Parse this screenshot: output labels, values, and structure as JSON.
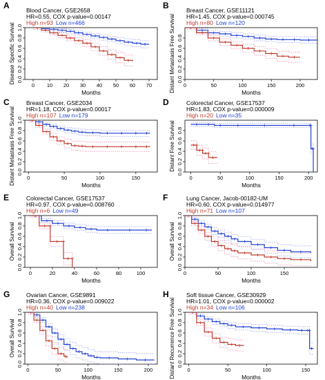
{
  "colors": {
    "high": "#c0392b",
    "low": "#1f3fd1",
    "high_ci": "#e77fa6",
    "low_ci": "#8c98e8"
  },
  "chart_data": [
    {
      "letter": "A",
      "type": "line",
      "title": "Blood Cancer, GSE2658",
      "stats": "HR=0.55, COX p-value=0.00147",
      "high_label": "High n=93",
      "low_label": "Low n=466",
      "xlabel": "Months",
      "ylabel": "Disease Specific Survival",
      "xlim": [
        -5,
        75
      ],
      "ylim": [
        0,
        1
      ],
      "xticks": [
        0,
        10,
        20,
        30,
        40,
        50,
        60,
        70
      ],
      "yticks": [
        0.0,
        0.2,
        0.4,
        0.6,
        0.8,
        1.0
      ],
      "series": [
        {
          "group": "low",
          "x": [
            0,
            5,
            10,
            15,
            20,
            25,
            30,
            35,
            40,
            45,
            50,
            55,
            60,
            65,
            70
          ],
          "y": [
            1.0,
            0.98,
            0.97,
            0.95,
            0.93,
            0.9,
            0.87,
            0.84,
            0.81,
            0.78,
            0.75,
            0.72,
            0.7,
            0.68,
            0.68
          ]
        },
        {
          "group": "high",
          "x": [
            0,
            5,
            10,
            15,
            20,
            25,
            30,
            35,
            40,
            45,
            50,
            55,
            60
          ],
          "y": [
            1.0,
            0.95,
            0.9,
            0.85,
            0.8,
            0.75,
            0.7,
            0.63,
            0.55,
            0.48,
            0.42,
            0.37,
            0.35
          ]
        }
      ]
    },
    {
      "letter": "B",
      "type": "line",
      "title": "Breast Cancer, GSE11121",
      "stats": "HR=1.45, COX p-value=0.000745",
      "high_label": "High n=80",
      "low_label": "Low n=120",
      "xlabel": "Months",
      "ylabel": "Distant Metastasis Free Survival",
      "xlim": [
        0,
        230
      ],
      "ylim": [
        0,
        1
      ],
      "xticks": [
        0,
        50,
        100,
        150,
        200
      ],
      "yticks": [
        0.0,
        0.2,
        0.4,
        0.6,
        0.8
      ],
      "series": [
        {
          "group": "low",
          "x": [
            0,
            20,
            40,
            60,
            80,
            100,
            120,
            140,
            160,
            180,
            200,
            230
          ],
          "y": [
            1.0,
            0.95,
            0.9,
            0.88,
            0.85,
            0.83,
            0.8,
            0.78,
            0.77,
            0.77,
            0.76,
            0.76
          ]
        },
        {
          "group": "high",
          "x": [
            0,
            20,
            40,
            60,
            80,
            100,
            120,
            140,
            160,
            180,
            200
          ],
          "y": [
            1.0,
            0.9,
            0.8,
            0.72,
            0.66,
            0.6,
            0.55,
            0.5,
            0.45,
            0.43,
            0.43
          ]
        }
      ]
    },
    {
      "letter": "C",
      "type": "line",
      "title": "Breast Cancer, GSE2034",
      "stats": "HR=1.18, COX p-value=0.00017",
      "high_label": "High n=107",
      "low_label": "Low n=179",
      "xlabel": "Months",
      "ylabel": "Distant Metastasis Free Survival",
      "xlim": [
        -5,
        180
      ],
      "ylim": [
        0,
        1
      ],
      "xticks": [
        0,
        50,
        100,
        150
      ],
      "yticks": [
        0.0,
        0.2,
        0.4,
        0.6,
        0.8,
        1.0
      ],
      "series": [
        {
          "group": "low",
          "x": [
            0,
            10,
            20,
            30,
            40,
            50,
            60,
            70,
            80,
            100,
            120,
            140,
            160,
            170
          ],
          "y": [
            1.0,
            0.97,
            0.92,
            0.88,
            0.84,
            0.81,
            0.79,
            0.77,
            0.76,
            0.75,
            0.75,
            0.75,
            0.75,
            0.75
          ]
        },
        {
          "group": "high",
          "x": [
            0,
            10,
            20,
            30,
            40,
            50,
            60,
            70,
            80,
            100,
            120,
            140,
            160,
            170
          ],
          "y": [
            1.0,
            0.9,
            0.78,
            0.68,
            0.6,
            0.55,
            0.51,
            0.5,
            0.49,
            0.49,
            0.49,
            0.49,
            0.49,
            0.49
          ]
        }
      ]
    },
    {
      "letter": "D",
      "type": "line",
      "title": "Colorectal Cancer, GSE17537",
      "stats": "HR=1.83, COX p-value=0.000009",
      "high_label": "High n=20",
      "low_label": "Low n=35",
      "xlabel": "Months",
      "ylabel": "Distant Free Survival",
      "xlim": [
        -10,
        215
      ],
      "ylim": [
        0,
        1
      ],
      "xticks": [
        0,
        50,
        100,
        150,
        200
      ],
      "yticks": [
        0.0,
        0.2,
        0.4,
        0.6,
        0.8
      ],
      "series": [
        {
          "group": "low",
          "x": [
            0,
            20,
            40,
            60,
            100,
            150,
            200,
            204,
            204,
            208,
            208
          ],
          "y": [
            0.92,
            0.92,
            0.9,
            0.9,
            0.9,
            0.9,
            0.9,
            0.9,
            0.45,
            0.45,
            0.0
          ]
        },
        {
          "group": "high",
          "x": [
            0,
            10,
            10,
            20,
            20,
            30,
            30,
            45
          ],
          "y": [
            0.52,
            0.52,
            0.42,
            0.42,
            0.36,
            0.36,
            0.28,
            0.28
          ]
        }
      ]
    },
    {
      "letter": "E",
      "type": "line",
      "title": "Colorectal Cancer, GSE17537",
      "stats": "HR=0.97, COX p-value=0.008760",
      "high_label": "High n=6",
      "low_label": "Low n=49",
      "xlabel": "Months",
      "ylabel": "Overall Survival",
      "xlim": [
        -5,
        115
      ],
      "ylim": [
        0,
        1
      ],
      "xticks": [
        0,
        20,
        40,
        60,
        80,
        100
      ],
      "yticks": [
        0.0,
        0.2,
        0.4,
        0.6,
        0.8,
        1.0
      ],
      "series": [
        {
          "group": "low",
          "x": [
            0,
            10,
            20,
            30,
            40,
            50,
            60,
            80,
            100,
            110
          ],
          "y": [
            1.0,
            0.9,
            0.85,
            0.8,
            0.77,
            0.74,
            0.72,
            0.72,
            0.72,
            0.72
          ]
        },
        {
          "group": "high",
          "x": [
            0,
            8,
            8,
            18,
            18,
            30,
            30,
            38,
            38
          ],
          "y": [
            1.0,
            1.0,
            0.8,
            0.8,
            0.5,
            0.5,
            0.17,
            0.17,
            0.0
          ]
        }
      ]
    },
    {
      "letter": "F",
      "type": "line",
      "title": "Lung Cancer, Jacob-00182-UM",
      "stats": "HR=0.60, COX p-value=0.014977",
      "high_label": "High n=71",
      "low_label": "Low n=107",
      "xlabel": "Months",
      "ylabel": "Overall Survival",
      "xlim": [
        0,
        200
      ],
      "ylim": [
        0,
        1
      ],
      "xticks": [
        0,
        50,
        100,
        150
      ],
      "yticks": [
        0.0,
        0.2,
        0.4,
        0.6,
        0.8,
        1.0
      ],
      "series": [
        {
          "group": "low",
          "x": [
            0,
            10,
            20,
            30,
            40,
            50,
            60,
            70,
            80,
            100,
            120,
            140,
            160,
            190
          ],
          "y": [
            1.0,
            0.93,
            0.85,
            0.78,
            0.7,
            0.65,
            0.6,
            0.55,
            0.5,
            0.44,
            0.38,
            0.33,
            0.3,
            0.28
          ]
        },
        {
          "group": "high",
          "x": [
            0,
            10,
            20,
            30,
            40,
            50,
            60,
            70,
            80,
            100,
            120,
            140,
            160,
            190
          ],
          "y": [
            1.0,
            0.85,
            0.72,
            0.6,
            0.5,
            0.42,
            0.36,
            0.32,
            0.28,
            0.24,
            0.2,
            0.17,
            0.15,
            0.12
          ]
        }
      ]
    },
    {
      "letter": "G",
      "type": "line",
      "title": "Ovarian Cancer, GSE9891",
      "stats": "HR=0.36, COX p-value=0.009022",
      "high_label": "High n=40",
      "low_label": "Low n=238",
      "xlabel": "Months",
      "ylabel": "Overall Survival",
      "xlim": [
        -5,
        215
      ],
      "ylim": [
        0,
        1
      ],
      "xticks": [
        0,
        50,
        100,
        150,
        200
      ],
      "yticks": [
        0.0,
        0.2,
        0.4,
        0.6,
        0.8,
        1.0
      ],
      "series": [
        {
          "group": "low",
          "x": [
            0,
            10,
            20,
            30,
            40,
            50,
            60,
            70,
            80,
            90,
            100,
            110,
            120,
            150,
            180,
            210
          ],
          "y": [
            1.0,
            0.95,
            0.85,
            0.72,
            0.6,
            0.48,
            0.38,
            0.3,
            0.24,
            0.2,
            0.16,
            0.13,
            0.12,
            0.1,
            0.08,
            0.08
          ]
        },
        {
          "group": "high",
          "x": [
            0,
            10,
            20,
            30,
            40,
            50,
            60,
            65
          ],
          "y": [
            1.0,
            0.85,
            0.65,
            0.45,
            0.3,
            0.2,
            0.15,
            0.12
          ]
        }
      ]
    },
    {
      "letter": "H",
      "type": "line",
      "title": "Soft tissue Cancer, GSE30929",
      "stats": "HR=1.01, COX p-value=0.000002",
      "high_label": "High n=34",
      "low_label": "Low n=106",
      "xlabel": "Months",
      "ylabel": "Distant Recurrence Free Survival",
      "xlim": [
        -5,
        165
      ],
      "ylim": [
        0,
        1
      ],
      "xticks": [
        0,
        50,
        100,
        150
      ],
      "yticks": [
        0.0,
        0.2,
        0.4,
        0.6,
        0.8,
        1.0
      ],
      "series": [
        {
          "group": "low",
          "x": [
            0,
            10,
            20,
            30,
            40,
            50,
            60,
            80,
            100,
            120,
            140,
            150,
            155,
            155,
            160
          ],
          "y": [
            1.0,
            0.93,
            0.87,
            0.82,
            0.78,
            0.75,
            0.72,
            0.7,
            0.68,
            0.66,
            0.65,
            0.65,
            0.65,
            0.3,
            0.3
          ]
        },
        {
          "group": "high",
          "x": [
            0,
            10,
            20,
            30,
            40,
            50,
            60,
            70
          ],
          "y": [
            1.0,
            0.8,
            0.62,
            0.5,
            0.42,
            0.38,
            0.36,
            0.35
          ]
        }
      ]
    }
  ]
}
